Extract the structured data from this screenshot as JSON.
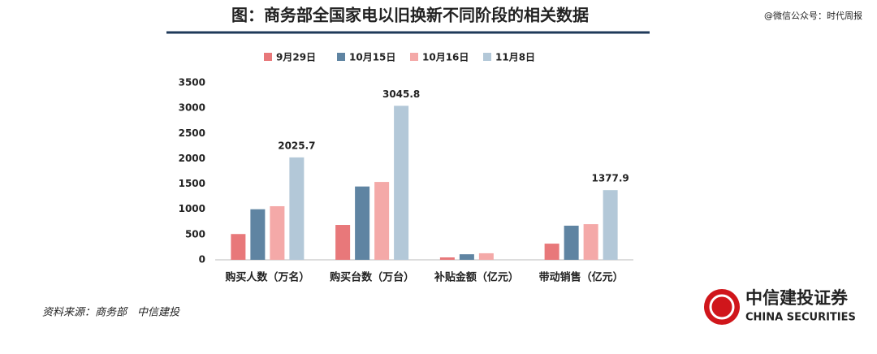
{
  "chart_data": {
    "type": "bar",
    "title": "图：商务部全国家电以旧换新不同阶段的相关数据",
    "categories": [
      "购买人数（万名）",
      "购买台数（万台）",
      "补贴金额（亿元）",
      "带动销售（亿元）"
    ],
    "series": [
      {
        "name": "9月29日",
        "color": "#e8787a",
        "values": [
          510,
          690,
          48,
          320
        ]
      },
      {
        "name": "10月15日",
        "color": "#5f84a2",
        "values": [
          1000,
          1450,
          110,
          675
        ]
      },
      {
        "name": "10月16日",
        "color": "#f4a9a8",
        "values": [
          1060,
          1540,
          130,
          705
        ]
      },
      {
        "name": "11月8日",
        "color": "#b3c8d8",
        "values": [
          2025.7,
          3045.8,
          null,
          1377.9
        ]
      }
    ],
    "labeled_series": 3,
    "ylim": [
      0,
      3500
    ],
    "yticks": [
      0,
      500,
      1000,
      1500,
      2000,
      2500,
      3000,
      3500
    ],
    "grid": false,
    "legend": "top"
  },
  "watermark": "@微信公众号：时代周报",
  "source": "资料来源：商务部　中信建投",
  "logo": {
    "name": "中信建投证券",
    "english": "CHINA SECURITIES"
  }
}
